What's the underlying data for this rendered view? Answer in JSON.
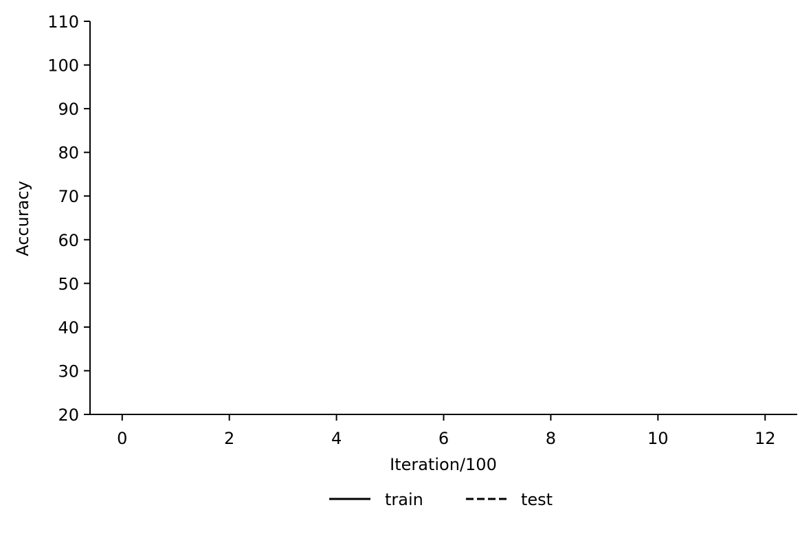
{
  "chart_data": {
    "type": "line",
    "title": "",
    "xlabel": "Iteration/100",
    "ylabel": "Accuracy",
    "xlim": [
      -0.6,
      12.6
    ],
    "ylim": [
      20,
      110
    ],
    "x_ticks": [
      0,
      2,
      4,
      6,
      8,
      10,
      12
    ],
    "y_ticks": [
      20,
      30,
      40,
      50,
      60,
      70,
      80,
      90,
      100,
      110
    ],
    "grid": false,
    "spines": [
      "left",
      "bottom"
    ],
    "legend_position": "bottom-center",
    "legend": [
      {
        "label": "train",
        "line_style": "solid",
        "color": "#000000"
      },
      {
        "label": "test",
        "line_style": "dashed",
        "color": "#000000"
      }
    ],
    "series": []
  }
}
